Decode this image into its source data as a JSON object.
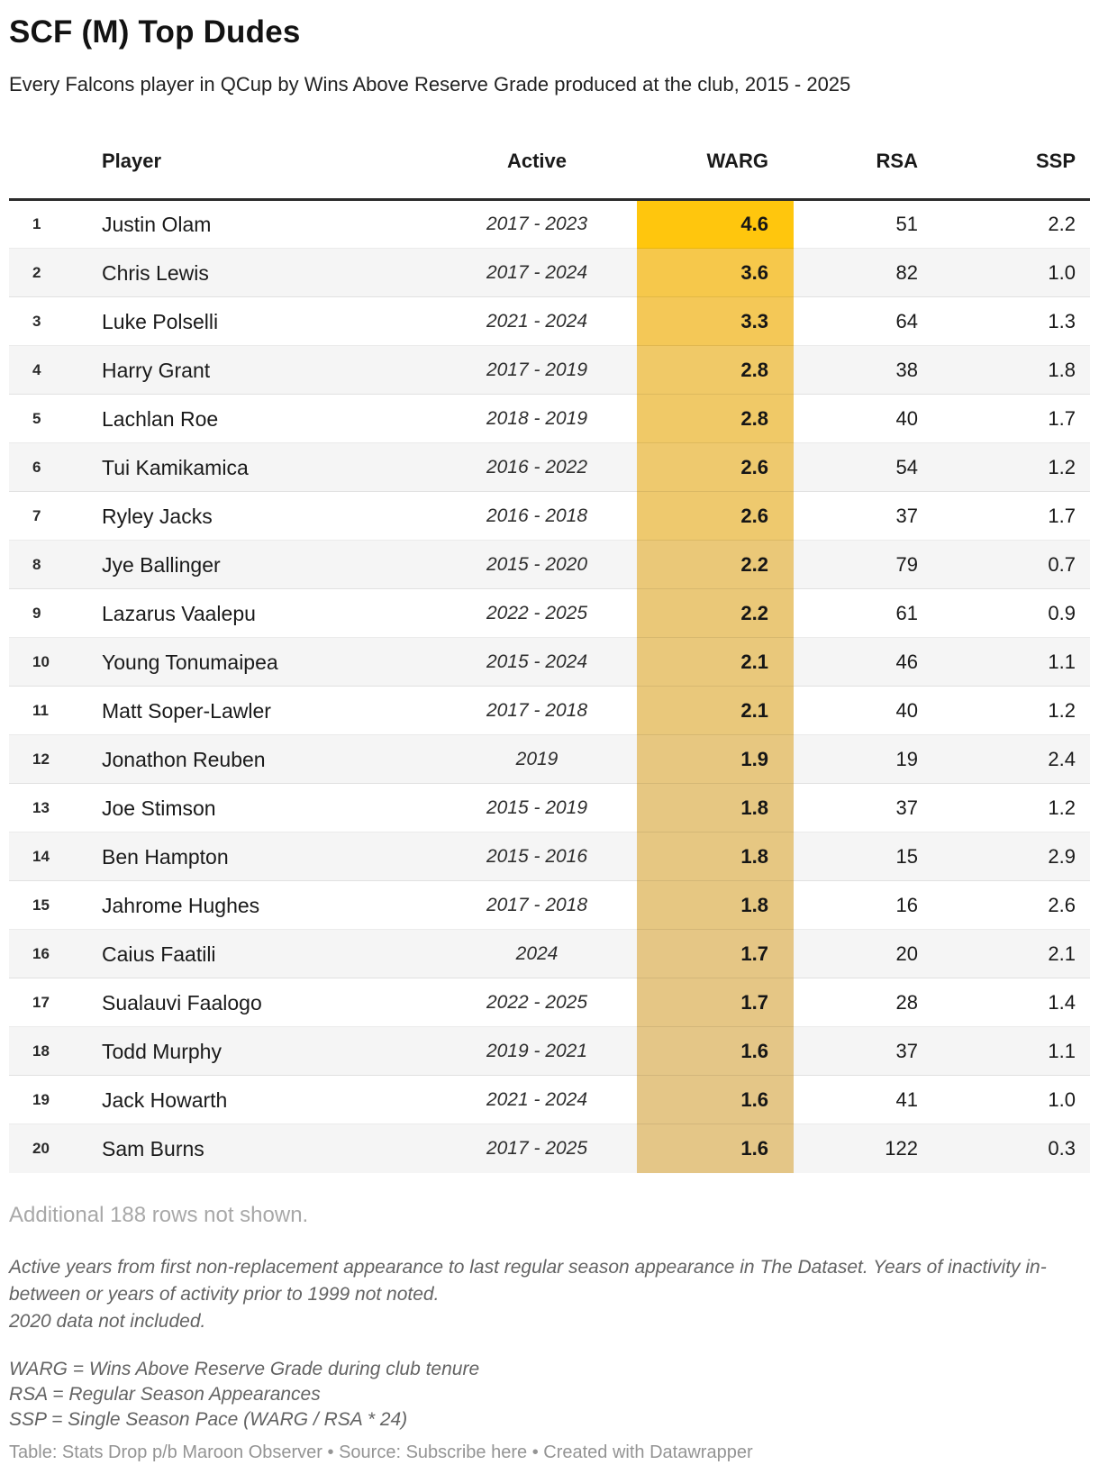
{
  "chart_data": {
    "type": "table",
    "title": "SCF (M) Top Dudes",
    "subtitle": "Every Falcons player in QCup by Wins Above Reserve Grade produced at the club, 2015 - 2025",
    "columns": [
      "Player",
      "Active",
      "WARG",
      "RSA",
      "SSP"
    ],
    "heatmap_column": "WARG",
    "heatmap_scale": {
      "max_color": "#ffc60d",
      "min_color": "#e4c687",
      "max_value": 4.6,
      "min_value": 1.6
    },
    "rows": [
      {
        "rank": "1",
        "player": "Justin Olam",
        "active": "2017 - 2023",
        "warg": "4.6",
        "rsa": "51",
        "ssp": "2.2",
        "warg_color": "#ffc60d"
      },
      {
        "rank": "2",
        "player": "Chris Lewis",
        "active": "2017 - 2024",
        "warg": "3.6",
        "rsa": "82",
        "ssp": "1.0",
        "warg_color": "#f6c84b"
      },
      {
        "rank": "3",
        "player": "Luke Polselli",
        "active": "2021 - 2024",
        "warg": "3.3",
        "rsa": "64",
        "ssp": "1.3",
        "warg_color": "#f4c857"
      },
      {
        "rank": "4",
        "player": "Harry Grant",
        "active": "2017 - 2019",
        "warg": "2.8",
        "rsa": "38",
        "ssp": "1.8",
        "warg_color": "#f0c967"
      },
      {
        "rank": "5",
        "player": "Lachlan Roe",
        "active": "2018 - 2019",
        "warg": "2.8",
        "rsa": "40",
        "ssp": "1.7",
        "warg_color": "#f0c967"
      },
      {
        "rank": "6",
        "player": "Tui Kamikamica",
        "active": "2016 - 2022",
        "warg": "2.6",
        "rsa": "54",
        "ssp": "1.2",
        "warg_color": "#eec96e"
      },
      {
        "rank": "7",
        "player": "Ryley Jacks",
        "active": "2016 - 2018",
        "warg": "2.6",
        "rsa": "37",
        "ssp": "1.7",
        "warg_color": "#eec96e"
      },
      {
        "rank": "8",
        "player": "Jye Ballinger",
        "active": "2015 - 2020",
        "warg": "2.2",
        "rsa": "79",
        "ssp": "0.7",
        "warg_color": "#eac878"
      },
      {
        "rank": "9",
        "player": "Lazarus Vaalepu",
        "active": "2022 - 2025",
        "warg": "2.2",
        "rsa": "61",
        "ssp": "0.9",
        "warg_color": "#eac878"
      },
      {
        "rank": "10",
        "player": "Young Tonumaipea",
        "active": "2015 - 2024",
        "warg": "2.1",
        "rsa": "46",
        "ssp": "1.1",
        "warg_color": "#e9c87b"
      },
      {
        "rank": "11",
        "player": "Matt Soper-Lawler",
        "active": "2017 - 2018",
        "warg": "2.1",
        "rsa": "40",
        "ssp": "1.2",
        "warg_color": "#e9c87b"
      },
      {
        "rank": "12",
        "player": "Jonathon Reuben",
        "active": "2019",
        "warg": "1.9",
        "rsa": "19",
        "ssp": "2.4",
        "warg_color": "#e7c780"
      },
      {
        "rank": "13",
        "player": "Joe Stimson",
        "active": "2015 - 2019",
        "warg": "1.8",
        "rsa": "37",
        "ssp": "1.2",
        "warg_color": "#e6c782"
      },
      {
        "rank": "14",
        "player": "Ben Hampton",
        "active": "2015 - 2016",
        "warg": "1.8",
        "rsa": "15",
        "ssp": "2.9",
        "warg_color": "#e6c782"
      },
      {
        "rank": "15",
        "player": "Jahrome Hughes",
        "active": "2017 - 2018",
        "warg": "1.8",
        "rsa": "16",
        "ssp": "2.6",
        "warg_color": "#e6c782"
      },
      {
        "rank": "16",
        "player": "Caius Faatili",
        "active": "2024",
        "warg": "1.7",
        "rsa": "20",
        "ssp": "2.1",
        "warg_color": "#e5c685"
      },
      {
        "rank": "17",
        "player": "Sualauvi Faalogo",
        "active": "2022 - 2025",
        "warg": "1.7",
        "rsa": "28",
        "ssp": "1.4",
        "warg_color": "#e5c685"
      },
      {
        "rank": "18",
        "player": "Todd Murphy",
        "active": "2019 - 2021",
        "warg": "1.6",
        "rsa": "37",
        "ssp": "1.1",
        "warg_color": "#e4c687"
      },
      {
        "rank": "19",
        "player": "Jack Howarth",
        "active": "2021 - 2024",
        "warg": "1.6",
        "rsa": "41",
        "ssp": "1.0",
        "warg_color": "#e4c687"
      },
      {
        "rank": "20",
        "player": "Sam Burns",
        "active": "2017 - 2025",
        "warg": "1.6",
        "rsa": "122",
        "ssp": "0.3",
        "warg_color": "#e4c687"
      }
    ],
    "layout": {
      "zebra_stripe_color": "#f5f5f5",
      "header_rule_color": "#2b2b2b"
    }
  },
  "footer": {
    "additional": "Additional 188 rows not shown.",
    "note_paragraph": "Active years from first non-replacement appearance to last regular season appearance in The Dataset. Years of inactivity in-between or years of activity prior to 1999 not noted.",
    "note_line2": "2020 data not included.",
    "abbr_lines": [
      "WARG = Wins Above Reserve Grade during club tenure",
      "RSA = Regular Season Appearances",
      "SSP = Single Season Pace (WARG / RSA * 24)"
    ],
    "credit": {
      "table_label": "Table: Stats Drop p/b Maroon Observer",
      "bullet": "•",
      "source_prefix": "Source:",
      "source_link": "Subscribe here",
      "created": "Created with Datawrapper"
    }
  }
}
